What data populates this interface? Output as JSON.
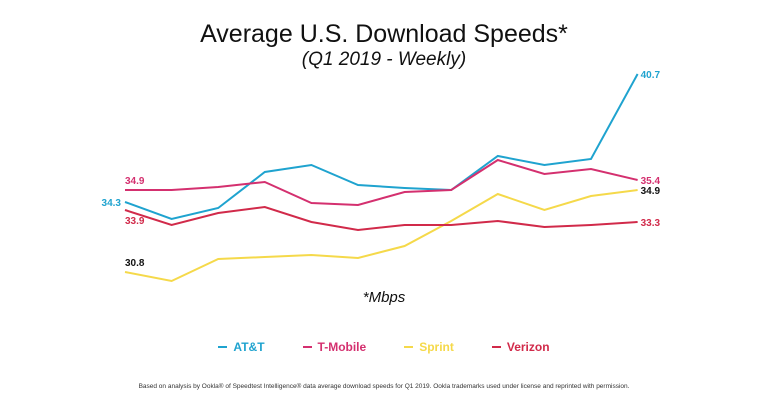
{
  "chart_data": {
    "type": "line",
    "title": "Average U.S. Download Speeds*",
    "subtitle": "(Q1 2019 - Weekly)",
    "unit_note": "*Mbps",
    "x": [
      1,
      2,
      3,
      4,
      5,
      6,
      7,
      8,
      9,
      10,
      11,
      12
    ],
    "grid": false,
    "legend_placement": "bottom",
    "series": [
      {
        "name": "AT&T",
        "color": "#1fa3cf",
        "label_color": "#1fa3cf",
        "start_label": "34.3",
        "end_label": "40.7",
        "values": [
          34.3,
          33.45,
          34.0,
          35.8,
          36.15,
          35.15,
          35.0,
          34.9,
          36.6,
          36.15,
          36.45,
          40.7
        ]
      },
      {
        "name": "T-Mobile",
        "color": "#d4306f",
        "label_color": "#d4306f",
        "start_label": "34.9",
        "end_label": "35.4",
        "values": [
          34.9,
          34.9,
          35.05,
          35.3,
          34.25,
          34.15,
          34.8,
          34.9,
          36.4,
          35.7,
          35.95,
          35.4
        ]
      },
      {
        "name": "Sprint",
        "color": "#f5d94a",
        "label_color": "#111111",
        "start_label": "30.8",
        "end_label": "34.9",
        "values": [
          30.8,
          30.35,
          31.45,
          31.55,
          31.65,
          31.5,
          32.1,
          33.35,
          34.7,
          33.9,
          34.6,
          34.9
        ]
      },
      {
        "name": "Verizon",
        "color": "#d12a4a",
        "label_color": "#d12a4a",
        "start_label": "33.9",
        "end_label": "33.3",
        "values": [
          33.9,
          33.15,
          33.75,
          34.05,
          33.3,
          32.9,
          33.15,
          33.15,
          33.35,
          33.05,
          33.15,
          33.3
        ]
      }
    ]
  },
  "footer": "Based on analysis by Ookla® of Speedtest Intelligence® data average download speeds for Q1 2019. Ookla trademarks used under license and reprinted with permission."
}
